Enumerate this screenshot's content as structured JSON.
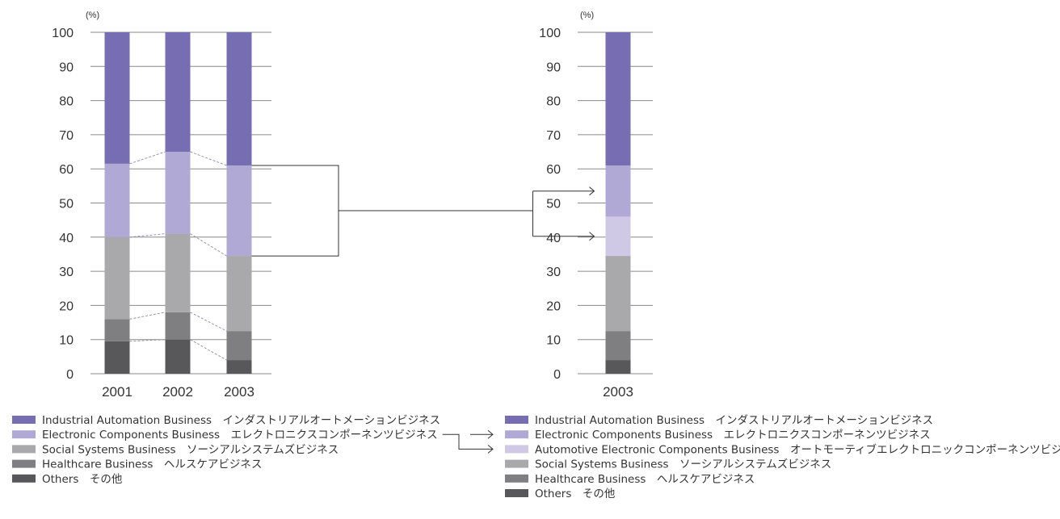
{
  "chart_data": [
    {
      "type": "bar",
      "stacked": true,
      "unit_label": "(%)",
      "ylim": [
        0,
        100
      ],
      "yticks": [
        0,
        10,
        20,
        30,
        40,
        50,
        60,
        70,
        80,
        90,
        100
      ],
      "categories": [
        "2001",
        "2002",
        "2003"
      ],
      "series": [
        {
          "name": "Others その他",
          "color": "#58585a",
          "values": [
            9.5,
            10,
            4
          ]
        },
        {
          "name": "Healthcare Business ヘルスケアビジネス",
          "color": "#7f7f82",
          "values": [
            6.5,
            8,
            8.5
          ]
        },
        {
          "name": "Social Systems Business ソーシアルシステムズビジネス",
          "color": "#a9a9ac",
          "values": [
            24,
            23,
            22
          ]
        },
        {
          "name": "Electronic Components Business エレクトロニクスコンポーネンツビジネス",
          "color": "#b1a9d5",
          "values": [
            21.5,
            24,
            26.5
          ]
        },
        {
          "name": "Industrial Automation Business インダストリアルオートメーションビジネス",
          "color": "#776db3",
          "values": [
            38.5,
            35,
            39
          ]
        }
      ]
    },
    {
      "type": "bar",
      "stacked": true,
      "unit_label": "(%)",
      "ylim": [
        0,
        100
      ],
      "yticks": [
        0,
        10,
        20,
        30,
        40,
        50,
        60,
        70,
        80,
        90,
        100
      ],
      "categories": [
        "2003"
      ],
      "series": [
        {
          "name": "Others その他",
          "color": "#58585a",
          "values": [
            4
          ]
        },
        {
          "name": "Healthcare Business ヘルスケアビジネス",
          "color": "#7f7f82",
          "values": [
            8.5
          ]
        },
        {
          "name": "Social Systems Business ソーシアルシステムズビジネス",
          "color": "#a9a9ac",
          "values": [
            22
          ]
        },
        {
          "name": "Automotive Electronic Components Business オートモーティブエレクトロニックコンポーネンツビジネス",
          "color": "#cfc9e6",
          "values": [
            11.5
          ]
        },
        {
          "name": "Electronic Components Business エレクトロニクスコンポーネンツビジネス",
          "color": "#b1a9d5",
          "values": [
            15
          ]
        },
        {
          "name": "Industrial Automation Business インダストリアルオートメーションビジネス",
          "color": "#776db3",
          "values": [
            39
          ]
        }
      ]
    }
  ],
  "legends": {
    "left": [
      {
        "en": "Industrial Automation Business",
        "ja": "インダストリアルオートメーションビジネス",
        "color": "#776db3"
      },
      {
        "en": "Electronic Components Business",
        "ja": "エレクトロニクスコンポーネンツビジネス",
        "color": "#b1a9d5"
      },
      {
        "en": "Social Systems Business",
        "ja": "ソーシアルシステムズビジネス",
        "color": "#a9a9ac"
      },
      {
        "en": "Healthcare Business",
        "ja": "ヘルスケアビジネス",
        "color": "#7f7f82"
      },
      {
        "en": "Others",
        "ja": "その他",
        "color": "#58585a"
      }
    ],
    "right": [
      {
        "en": "Industrial Automation Business",
        "ja": "インダストリアルオートメーションビジネス",
        "color": "#776db3"
      },
      {
        "en": "Electronic Components Business",
        "ja": "エレクトロニクスコンポーネンツビジネス",
        "color": "#b1a9d5"
      },
      {
        "en": "Automotive Electronic Components Business",
        "ja": "オートモーティブエレクトロニックコンポーネンツビジネス",
        "color": "#cfc9e6"
      },
      {
        "en": "Social Systems Business",
        "ja": "ソーシアルシステムズビジネス",
        "color": "#a9a9ac"
      },
      {
        "en": "Healthcare Business",
        "ja": "ヘルスケアビジネス",
        "color": "#7f7f82"
      },
      {
        "en": "Others",
        "ja": "その他",
        "color": "#58585a"
      }
    ]
  },
  "colors": {
    "grid": "#8a8a8a",
    "text": "#333333",
    "connector": "#333333",
    "dashed": "#8a8aa8"
  }
}
